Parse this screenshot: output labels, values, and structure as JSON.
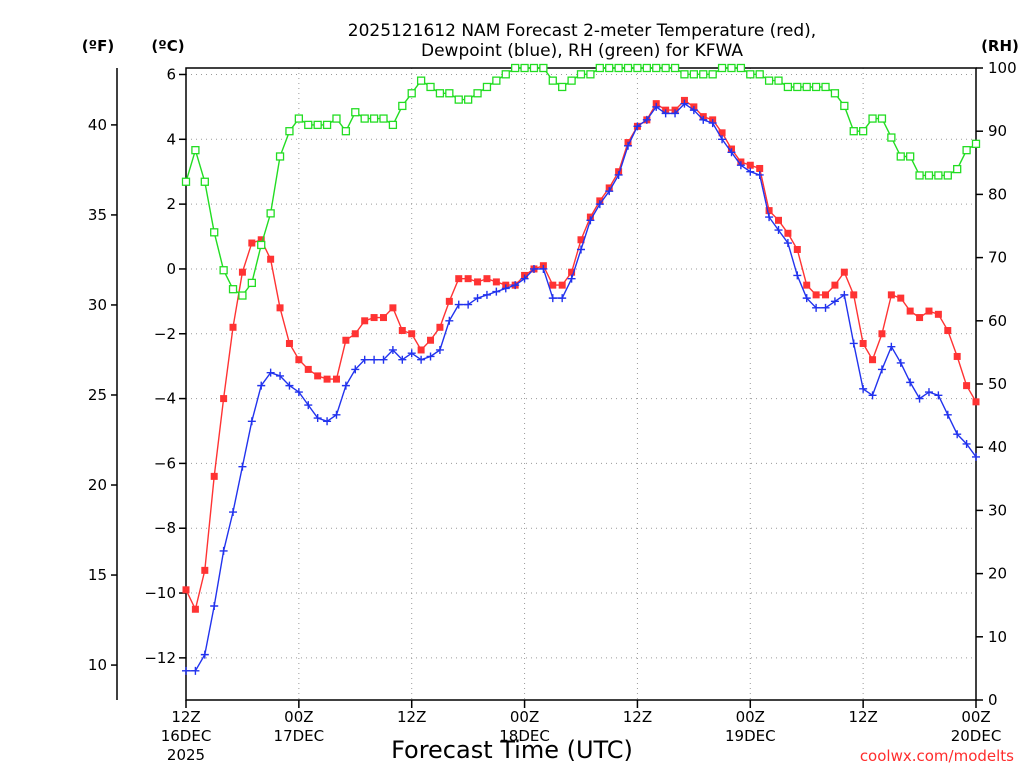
{
  "chart_data": {
    "type": "line",
    "title_line1": "2025121612 NAM Forecast 2-meter Temperature (red),",
    "title_line2": "Dewpoint (blue), RH (green) for KFWA",
    "xlabel": "Forecast Time (UTC)",
    "x_unit": "hours after 2025121612",
    "xlim": [
      0,
      84
    ],
    "x_ticks": [
      {
        "hour": 0,
        "line1": "12Z",
        "line2": "16DEC",
        "line3": "2025"
      },
      {
        "hour": 12,
        "line1": "00Z",
        "line2": "17DEC",
        "line3": ""
      },
      {
        "hour": 24,
        "line1": "12Z",
        "line2": "",
        "line3": ""
      },
      {
        "hour": 36,
        "line1": "00Z",
        "line2": "18DEC",
        "line3": ""
      },
      {
        "hour": 48,
        "line1": "12Z",
        "line2": "",
        "line3": ""
      },
      {
        "hour": 60,
        "line1": "00Z",
        "line2": "19DEC",
        "line3": ""
      },
      {
        "hour": 72,
        "line1": "12Z",
        "line2": "",
        "line3": ""
      },
      {
        "hour": 84,
        "line1": "00Z",
        "line2": "20DEC",
        "line3": ""
      }
    ],
    "y_left_c": {
      "label": "(ºC)",
      "ylim": [
        -13.3,
        6.2
      ],
      "ticks": [
        6,
        4,
        2,
        0,
        -2,
        -4,
        -6,
        -8,
        -10,
        -12
      ]
    },
    "y_left_f": {
      "label": "(ºF)",
      "ticks": [
        40,
        35,
        30,
        25,
        20,
        15,
        10
      ]
    },
    "y_right_rh": {
      "label": "(RH)",
      "ylim": [
        0,
        100
      ],
      "ticks": [
        100,
        90,
        80,
        70,
        60,
        50,
        40,
        30,
        20,
        10,
        0
      ]
    },
    "series": [
      {
        "name": "Temperature",
        "unit": "C",
        "color": "#ff3333",
        "marker": "filled-square",
        "values": [
          -9.9,
          -10.5,
          -9.3,
          -6.4,
          -4.0,
          -1.8,
          -0.1,
          0.8,
          0.9,
          0.3,
          -1.2,
          -2.3,
          -2.8,
          -3.1,
          -3.3,
          -3.4,
          -3.4,
          -2.2,
          -2.0,
          -1.6,
          -1.5,
          -1.5,
          -1.2,
          -1.9,
          -2.0,
          -2.5,
          -2.2,
          -1.8,
          -1.0,
          -0.3,
          -0.3,
          -0.4,
          -0.3,
          -0.4,
          -0.5,
          -0.5,
          -0.2,
          0.0,
          0.1,
          -0.5,
          -0.5,
          -0.1,
          0.9,
          1.6,
          2.1,
          2.5,
          3.0,
          3.9,
          4.4,
          4.6,
          5.1,
          4.9,
          4.9,
          5.2,
          5.0,
          4.7,
          4.6,
          4.2,
          3.7,
          3.3,
          3.2,
          3.1,
          1.8,
          1.5,
          1.1,
          0.6,
          -0.5,
          -0.8,
          -0.8,
          -0.5,
          -0.1,
          -0.8,
          -2.3,
          -2.8,
          -2.0,
          -0.8,
          -0.9,
          -1.3,
          -1.5,
          -1.3,
          -1.4,
          -1.9,
          -2.7,
          -3.6,
          -4.1
        ]
      },
      {
        "name": "Dewpoint",
        "unit": "C",
        "color": "#2233ee",
        "marker": "plus",
        "values": [
          -12.4,
          -12.4,
          -11.9,
          -10.4,
          -8.7,
          -7.5,
          -6.1,
          -4.7,
          -3.6,
          -3.2,
          -3.3,
          -3.6,
          -3.8,
          -4.2,
          -4.6,
          -4.7,
          -4.5,
          -3.6,
          -3.1,
          -2.8,
          -2.8,
          -2.8,
          -2.5,
          -2.8,
          -2.6,
          -2.8,
          -2.7,
          -2.5,
          -1.6,
          -1.1,
          -1.1,
          -0.9,
          -0.8,
          -0.7,
          -0.6,
          -0.5,
          -0.3,
          0.0,
          0.0,
          -0.9,
          -0.9,
          -0.3,
          0.6,
          1.5,
          2.0,
          2.4,
          2.9,
          3.8,
          4.4,
          4.6,
          5.0,
          4.8,
          4.8,
          5.1,
          4.9,
          4.6,
          4.5,
          4.0,
          3.6,
          3.2,
          3.0,
          2.9,
          1.6,
          1.2,
          0.8,
          -0.2,
          -0.9,
          -1.2,
          -1.2,
          -1.0,
          -0.8,
          -2.3,
          -3.7,
          -3.9,
          -3.1,
          -2.4,
          -2.9,
          -3.5,
          -4.0,
          -3.8,
          -3.9,
          -4.5,
          -5.1,
          -5.4,
          -5.8
        ]
      },
      {
        "name": "RH",
        "unit": "%",
        "color": "#22dd22",
        "marker": "open-square",
        "values": [
          82,
          87,
          82,
          74,
          68,
          65,
          64,
          66,
          72,
          77,
          86,
          90,
          92,
          91,
          91,
          91,
          92,
          90,
          93,
          92,
          92,
          92,
          91,
          94,
          96,
          98,
          97,
          96,
          96,
          95,
          95,
          96,
          97,
          98,
          99,
          100,
          100,
          100,
          100,
          98,
          97,
          98,
          99,
          99,
          100,
          100,
          100,
          100,
          100,
          100,
          100,
          100,
          100,
          99,
          99,
          99,
          99,
          100,
          100,
          100,
          99,
          99,
          98,
          98,
          97,
          97,
          97,
          97,
          97,
          96,
          94,
          90,
          90,
          92,
          92,
          89,
          86,
          86,
          83,
          83,
          83,
          83,
          84,
          87,
          88
        ]
      }
    ]
  },
  "credit": "coolwx.com/modelts"
}
